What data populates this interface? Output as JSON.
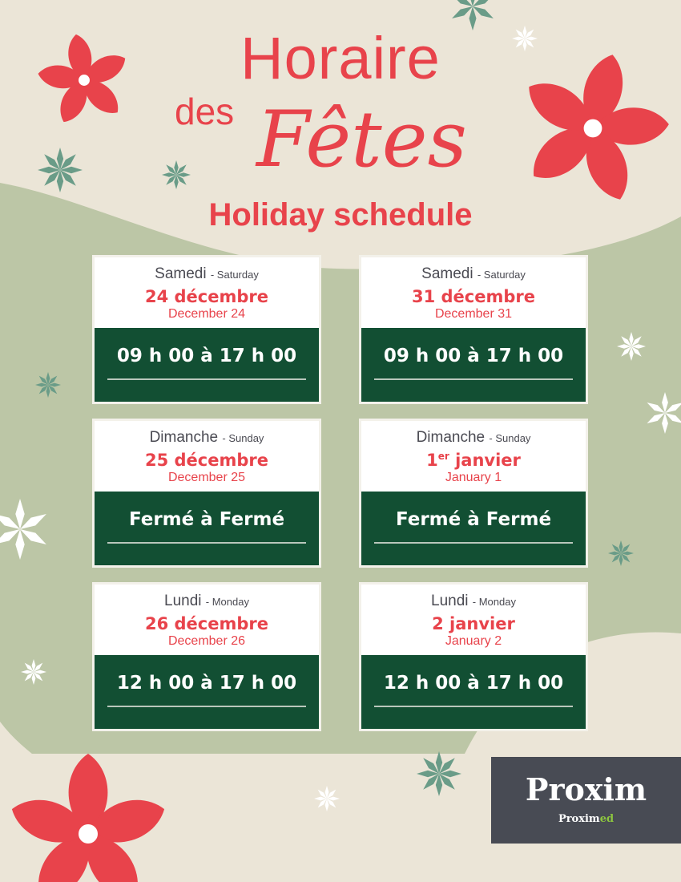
{
  "title": {
    "line1": "Horaire",
    "line2a": "des",
    "line2b": "Fêtes",
    "subtitle": "Holiday schedule"
  },
  "colors": {
    "background": "#ebe5d7",
    "blob": "#bcc6a6",
    "red": "#e8434b",
    "green": "#124f33",
    "logo_bg": "#484b54",
    "logo_accent": "#8dc63f"
  },
  "cards": [
    {
      "day_fr": "Samedi",
      "day_en": "- Saturday",
      "date_fr": "24 décembre",
      "date_sup": "",
      "date_fr_rest": "",
      "date_en": "December 24",
      "hours": "09 h 00 à 17 h 00"
    },
    {
      "day_fr": "Samedi",
      "day_en": "- Saturday",
      "date_fr": "31 décembre",
      "date_sup": "",
      "date_fr_rest": "",
      "date_en": "December 31",
      "hours": "09 h 00 à 17 h 00"
    },
    {
      "day_fr": "Dimanche",
      "day_en": "- Sunday",
      "date_fr": "25 décembre",
      "date_sup": "",
      "date_fr_rest": "",
      "date_en": "December 25",
      "hours": "Fermé à Fermé"
    },
    {
      "day_fr": "Dimanche",
      "day_en": "- Sunday",
      "date_fr": "1",
      "date_sup": "er",
      "date_fr_rest": " janvier",
      "date_en": "January 1",
      "hours": "Fermé à Fermé"
    },
    {
      "day_fr": "Lundi",
      "day_en": "- Monday",
      "date_fr": "26 décembre",
      "date_sup": "",
      "date_fr_rest": "",
      "date_en": "December 26",
      "hours": "12 h 00 à 17 h 00"
    },
    {
      "day_fr": "Lundi",
      "day_en": "- Monday",
      "date_fr": "2 janvier",
      "date_sup": "",
      "date_fr_rest": "",
      "date_en": "January 2",
      "hours": "12 h 00 à 17 h 00"
    }
  ],
  "logo": {
    "main": "Proxim",
    "sub_a": "Proxim",
    "sub_b": "ed"
  }
}
